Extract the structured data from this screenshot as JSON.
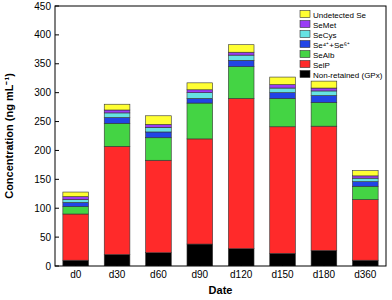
{
  "chart_data": {
    "type": "bar",
    "stacked": true,
    "legend": "upper right",
    "grid": false,
    "x_label": "Date",
    "y_label": "Concentration (ng mL⁻¹)",
    "categories": [
      "d0",
      "d30",
      "d60",
      "d90",
      "d120",
      "d150",
      "d180",
      "d360"
    ],
    "ylim": [
      0,
      450
    ],
    "yticks": [
      0,
      50,
      100,
      150,
      200,
      250,
      300,
      350,
      400,
      450
    ],
    "series": [
      {
        "name": "Non-retained (GPx)",
        "color": "#000000",
        "values": [
          10,
          20,
          23,
          38,
          30,
          22,
          27,
          10
        ]
      },
      {
        "name": "SelP",
        "color": "#ff2a2a",
        "values": [
          80,
          187,
          160,
          182,
          260,
          219,
          215,
          105
        ]
      },
      {
        "name": "SeAlb",
        "color": "#44d444",
        "values": [
          13,
          40,
          39,
          62,
          55,
          49,
          41,
          23
        ]
      },
      {
        "name": "Se⁴⁺+Se⁶⁺",
        "color": "#2244e6",
        "values": [
          7,
          10,
          10,
          8,
          11,
          10,
          12,
          8
        ]
      },
      {
        "name": "SeCys",
        "color": "#66e3e3",
        "values": [
          5,
          8,
          8,
          10,
          9,
          8,
          8,
          6
        ]
      },
      {
        "name": "SeMet",
        "color": "#9a3cf5",
        "values": [
          5,
          5,
          5,
          5,
          5,
          6,
          5,
          4
        ]
      },
      {
        "name": "Undetected Se",
        "color": "#ffff33",
        "values": [
          8,
          10,
          15,
          12,
          13,
          13,
          12,
          9
        ]
      }
    ]
  }
}
